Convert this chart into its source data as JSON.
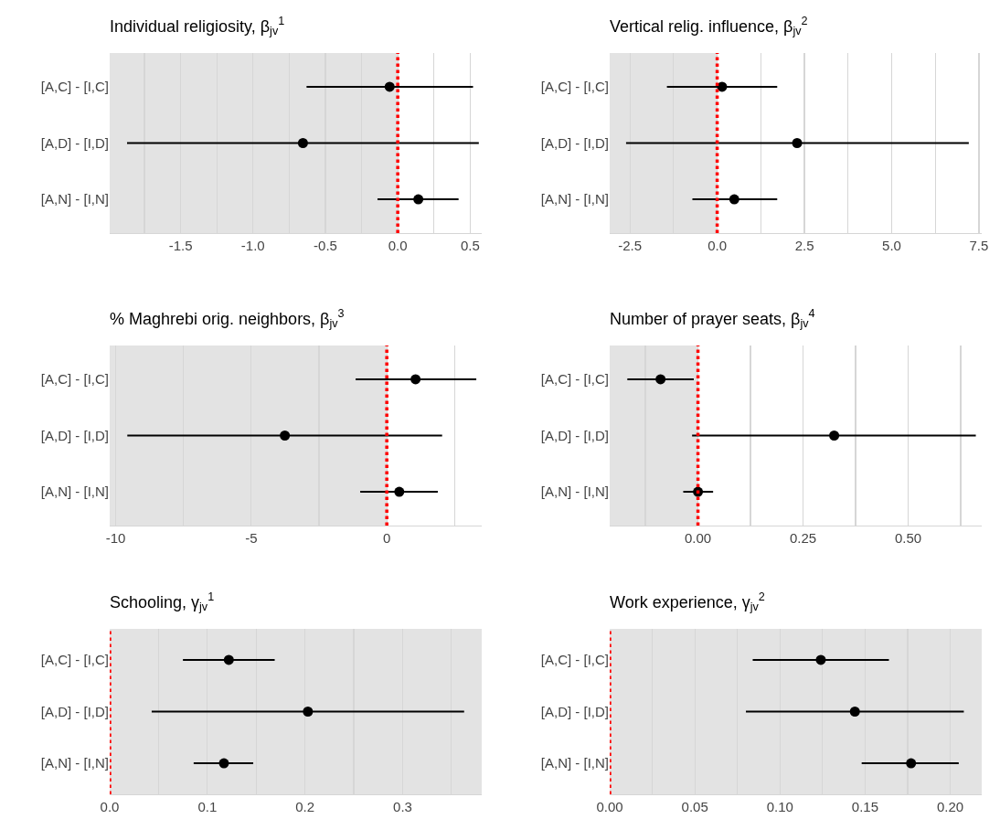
{
  "chart_data": [
    {
      "type": "scatter",
      "title": "Individual religiosity, β$_{jv}$$^{1}$",
      "orientation": "horizontal",
      "categories": [
        "[A,C] - [I,C]",
        "[A,D] - [I,D]",
        "[A,N] - [I,N]"
      ],
      "values": [
        -0.056,
        -0.655,
        0.142
      ],
      "errors": [
        [
          -0.63,
          0.52
        ],
        [
          -1.87,
          0.56
        ],
        [
          -0.14,
          0.42
        ]
      ],
      "color": "#000000",
      "marker": "circle",
      "xlim": [
        -1.99,
        0.58
      ],
      "xticks": [
        {
          "value": -1.75,
          "label": null
        },
        -1.5,
        {
          "value": -1.25,
          "label": null
        },
        {
          "value": -1,
          "label": "-1.0"
        },
        {
          "value": -0.75,
          "label": null
        },
        -0.5,
        {
          "value": -0.25,
          "label": null
        },
        {
          "value": 0,
          "label": "0.0"
        },
        {
          "value": 0.25,
          "label": null
        },
        0.5
      ],
      "grid": "x",
      "ref_lines": [
        {
          "axis": "x",
          "value": 0,
          "color": "#ff0000",
          "line_style": "dotted"
        }
      ],
      "bands": [
        {
          "axis": "x",
          "from": -1.99,
          "to": 0,
          "color": "#e3e3e3"
        }
      ]
    },
    {
      "type": "scatter",
      "title": "Vertical relig. influence, β$_{jv}$$^{2}$",
      "orientation": "horizontal",
      "categories": [
        "[A,C] - [I,C]",
        "[A,D] - [I,D]",
        "[A,N] - [I,N]"
      ],
      "values": [
        0.14,
        2.29,
        0.49
      ],
      "errors": [
        [
          -1.44,
          1.72
        ],
        [
          -2.61,
          7.21
        ],
        [
          -0.71,
          1.72
        ]
      ],
      "color": "#000000",
      "marker": "circle",
      "xlim": [
        -3.08,
        7.58
      ],
      "xticks": [
        -2.5,
        {
          "value": -1.25,
          "label": null
        },
        {
          "value": 0,
          "label": "0.0"
        },
        {
          "value": 1.25,
          "label": null
        },
        2.5,
        {
          "value": 3.75,
          "label": null
        },
        {
          "value": 5,
          "label": "5.0"
        },
        {
          "value": 6.25,
          "label": null
        },
        7.5
      ],
      "grid": "x",
      "ref_lines": [
        {
          "axis": "x",
          "value": 0,
          "color": "#ff0000",
          "line_style": "dotted"
        }
      ],
      "bands": [
        {
          "axis": "x",
          "from": -3.08,
          "to": 0,
          "color": "#e3e3e3"
        }
      ]
    },
    {
      "type": "scatter",
      "title": "% Maghrebi orig. neighbors, β$_{jv}$$^{3}$",
      "orientation": "horizontal",
      "categories": [
        "[A,C] - [I,C]",
        "[A,D] - [I,D]",
        "[A,N] - [I,N]"
      ],
      "values": [
        1.06,
        -3.76,
        0.46
      ],
      "errors": [
        [
          -1.15,
          3.3
        ],
        [
          -9.57,
          2.04
        ],
        [
          -0.98,
          1.88
        ]
      ],
      "color": "#000000",
      "marker": "circle",
      "xlim": [
        -10.22,
        3.5
      ],
      "xticks": [
        -10,
        {
          "value": -7.5,
          "label": null
        },
        -5,
        {
          "value": -2.5,
          "label": null
        },
        0,
        {
          "value": 2.5,
          "label": null
        }
      ],
      "grid": "x",
      "ref_lines": [
        {
          "axis": "x",
          "value": 0,
          "color": "#ff0000",
          "line_style": "dotted"
        }
      ],
      "bands": [
        {
          "axis": "x",
          "from": -10.22,
          "to": 0,
          "color": "#e3e3e3"
        }
      ]
    },
    {
      "type": "scatter",
      "title": "Number of prayer seats, β$_{jv}$$^{4}$",
      "orientation": "horizontal",
      "categories": [
        "[A,C] - [I,C]",
        "[A,D] - [I,D]",
        "[A,N] - [I,N]"
      ],
      "values": [
        -0.089,
        0.324,
        0.0
      ],
      "errors": [
        [
          -0.168,
          -0.01
        ],
        [
          -0.014,
          0.661
        ],
        [
          -0.035,
          0.036
        ]
      ],
      "color": "#000000",
      "marker": "circle",
      "xlim": [
        -0.21,
        0.675
      ],
      "xticks": [
        {
          "value": -0.125,
          "label": null
        },
        {
          "value": 0,
          "label": "0.00"
        },
        {
          "value": 0.125,
          "label": null
        },
        0.25,
        {
          "value": 0.375,
          "label": null
        },
        {
          "value": 0.5,
          "label": "0.50"
        },
        {
          "value": 0.625,
          "label": null
        }
      ],
      "grid": "x",
      "ref_lines": [
        {
          "axis": "x",
          "value": 0,
          "color": "#ff0000",
          "line_style": "dotted"
        }
      ],
      "bands": [
        {
          "axis": "x",
          "from": -0.21,
          "to": 0,
          "color": "#e3e3e3"
        }
      ]
    },
    {
      "type": "scatter",
      "title": "Schooling, γ$_{jv}$$^{1}$",
      "orientation": "horizontal",
      "categories": [
        "[A,C] - [I,C]",
        "[A,D] - [I,D]",
        "[A,N] - [I,N]"
      ],
      "values": [
        0.122,
        0.203,
        0.117
      ],
      "errors": [
        [
          0.075,
          0.169
        ],
        [
          0.043,
          0.363
        ],
        [
          0.086,
          0.147
        ]
      ],
      "color": "#000000",
      "marker": "circle",
      "xlim": [
        0,
        0.381
      ],
      "xticks": [
        {
          "value": 0,
          "label": "0.0"
        },
        {
          "value": 0.05,
          "label": null
        },
        0.1,
        {
          "value": 0.15,
          "label": null
        },
        0.2,
        {
          "value": 0.25,
          "label": null
        },
        0.3,
        {
          "value": 0.35,
          "label": null
        }
      ],
      "grid": "x",
      "ref_lines": [
        {
          "axis": "x",
          "value": 0,
          "color": "#ff0000",
          "line_style": "dotted"
        }
      ],
      "bands": [
        {
          "axis": "x",
          "from": 0,
          "to": 0.381,
          "color": "#e3e3e3"
        }
      ]
    },
    {
      "type": "scatter",
      "title": "Work experience, γ$_{jv}$$^{2}$",
      "orientation": "horizontal",
      "categories": [
        "[A,C] - [I,C]",
        "[A,D] - [I,D]",
        "[A,N] - [I,N]"
      ],
      "values": [
        0.124,
        0.144,
        0.177
      ],
      "errors": [
        [
          0.084,
          0.164
        ],
        [
          0.08,
          0.208
        ],
        [
          0.148,
          0.205
        ]
      ],
      "color": "#000000",
      "marker": "circle",
      "xlim": [
        0,
        0.2185
      ],
      "xticks": [
        {
          "value": 0,
          "label": "0.00"
        },
        {
          "value": 0.025,
          "label": null
        },
        0.05,
        {
          "value": 0.075,
          "label": null
        },
        {
          "value": 0.1,
          "label": "0.10"
        },
        {
          "value": 0.125,
          "label": null
        },
        0.15,
        {
          "value": 0.175,
          "label": null
        },
        {
          "value": 0.2,
          "label": "0.20"
        }
      ],
      "grid": "x",
      "ref_lines": [
        {
          "axis": "x",
          "value": 0,
          "color": "#ff0000",
          "line_style": "dotted"
        }
      ],
      "bands": [
        {
          "axis": "x",
          "from": 0,
          "to": 0.2185,
          "color": "#e3e3e3"
        }
      ]
    }
  ]
}
